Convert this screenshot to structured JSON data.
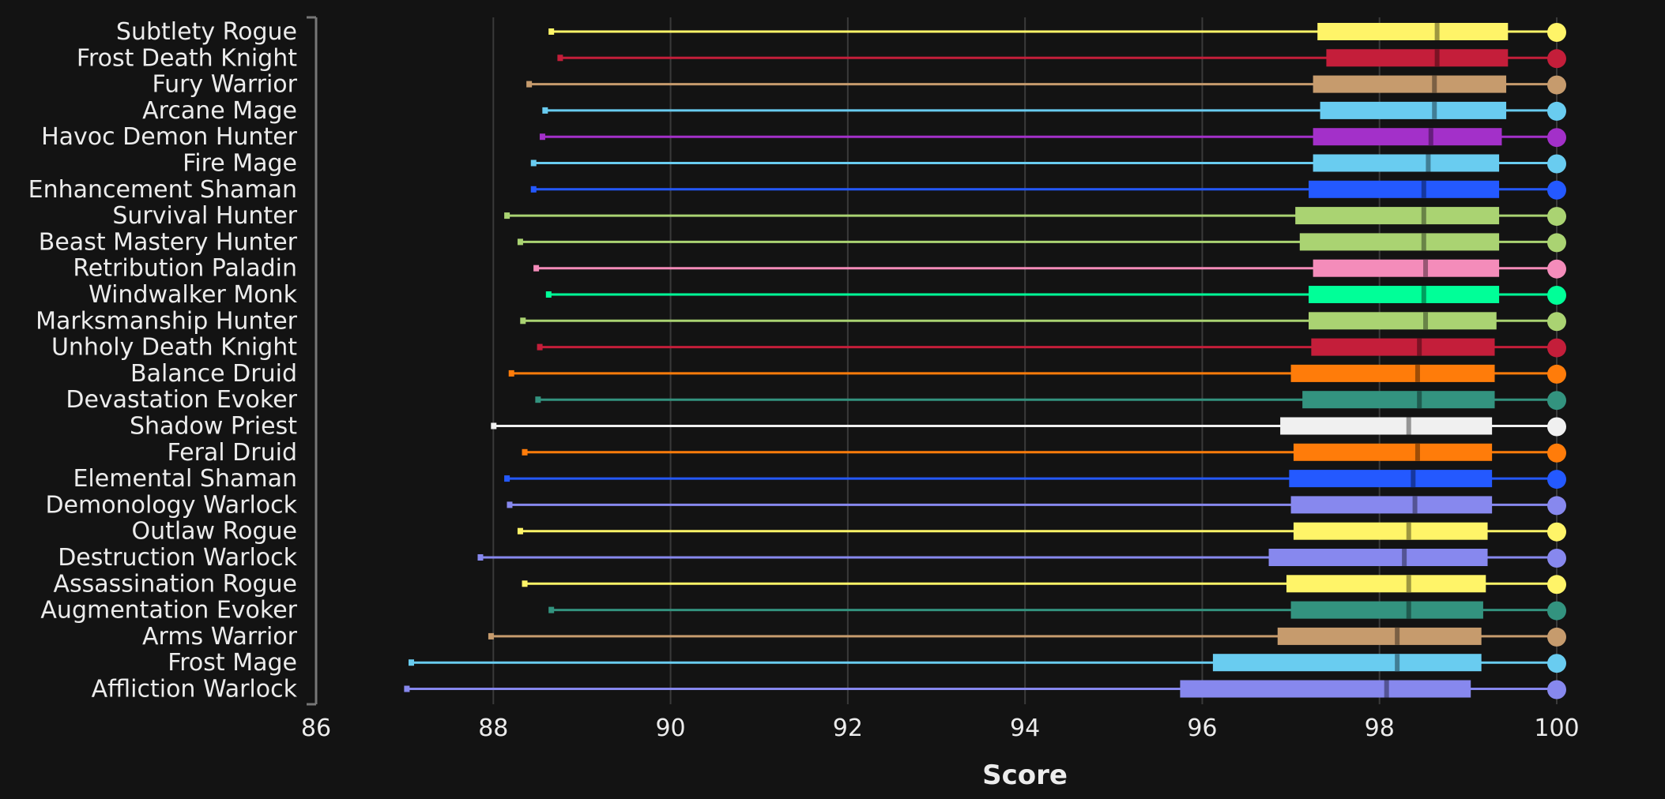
{
  "chart_data": {
    "type": "box",
    "orientation": "horizontal",
    "title": "",
    "xlabel": "Score",
    "ylabel": "",
    "xlim": [
      86,
      100
    ],
    "x_ticks": [
      86,
      88,
      90,
      92,
      94,
      96,
      98,
      100
    ],
    "grid": true,
    "legend": "none",
    "series": [
      {
        "category": "Subtlety Rogue",
        "color": "#fff468",
        "min": 88.65,
        "q1": 97.3,
        "median": 98.65,
        "q3": 99.45,
        "max": 100
      },
      {
        "category": "Frost Death Knight",
        "color": "#c41e3a",
        "min": 88.75,
        "q1": 97.4,
        "median": 98.65,
        "q3": 99.45,
        "max": 100
      },
      {
        "category": "Fury Warrior",
        "color": "#c69b6d",
        "min": 88.4,
        "q1": 97.25,
        "median": 98.62,
        "q3": 99.43,
        "max": 100
      },
      {
        "category": "Arcane Mage",
        "color": "#69ccf0",
        "min": 88.58,
        "q1": 97.33,
        "median": 98.62,
        "q3": 99.43,
        "max": 100
      },
      {
        "category": "Havoc Demon Hunter",
        "color": "#a330c9",
        "min": 88.55,
        "q1": 97.25,
        "median": 98.58,
        "q3": 99.38,
        "max": 100
      },
      {
        "category": "Fire Mage",
        "color": "#69ccf0",
        "min": 88.45,
        "q1": 97.25,
        "median": 98.55,
        "q3": 99.35,
        "max": 100
      },
      {
        "category": "Enhancement Shaman",
        "color": "#2459ff",
        "min": 88.45,
        "q1": 97.2,
        "median": 98.5,
        "q3": 99.35,
        "max": 100
      },
      {
        "category": "Survival Hunter",
        "color": "#aad372",
        "min": 88.15,
        "q1": 97.05,
        "median": 98.5,
        "q3": 99.35,
        "max": 100
      },
      {
        "category": "Beast Mastery Hunter",
        "color": "#aad372",
        "min": 88.3,
        "q1": 97.1,
        "median": 98.5,
        "q3": 99.35,
        "max": 100
      },
      {
        "category": "Retribution Paladin",
        "color": "#f48cba",
        "min": 88.48,
        "q1": 97.25,
        "median": 98.52,
        "q3": 99.35,
        "max": 100
      },
      {
        "category": "Windwalker Monk",
        "color": "#00ff98",
        "min": 88.62,
        "q1": 97.2,
        "median": 98.5,
        "q3": 99.35,
        "max": 100
      },
      {
        "category": "Marksmanship Hunter",
        "color": "#aad372",
        "min": 88.33,
        "q1": 97.2,
        "median": 98.52,
        "q3": 99.32,
        "max": 100
      },
      {
        "category": "Unholy Death Knight",
        "color": "#c41e3a",
        "min": 88.52,
        "q1": 97.23,
        "median": 98.45,
        "q3": 99.3,
        "max": 100
      },
      {
        "category": "Balance Druid",
        "color": "#ff7c0a",
        "min": 88.2,
        "q1": 97.0,
        "median": 98.43,
        "q3": 99.3,
        "max": 100
      },
      {
        "category": "Devastation Evoker",
        "color": "#33937f",
        "min": 88.5,
        "q1": 97.13,
        "median": 98.45,
        "q3": 99.3,
        "max": 100
      },
      {
        "category": "Shadow Priest",
        "color": "#f0f0f0",
        "min": 88.0,
        "q1": 96.88,
        "median": 98.33,
        "q3": 99.27,
        "max": 100
      },
      {
        "category": "Feral Druid",
        "color": "#ff7c0a",
        "min": 88.35,
        "q1": 97.03,
        "median": 98.43,
        "q3": 99.27,
        "max": 100
      },
      {
        "category": "Elemental Shaman",
        "color": "#2459ff",
        "min": 88.15,
        "q1": 96.98,
        "median": 98.38,
        "q3": 99.27,
        "max": 100
      },
      {
        "category": "Demonology Warlock",
        "color": "#8788ee",
        "min": 88.18,
        "q1": 97.0,
        "median": 98.4,
        "q3": 99.27,
        "max": 100
      },
      {
        "category": "Outlaw Rogue",
        "color": "#fff468",
        "min": 88.3,
        "q1": 97.03,
        "median": 98.33,
        "q3": 99.22,
        "max": 100
      },
      {
        "category": "Destruction Warlock",
        "color": "#8788ee",
        "min": 87.85,
        "q1": 96.75,
        "median": 98.28,
        "q3": 99.22,
        "max": 100
      },
      {
        "category": "Assassination Rogue",
        "color": "#fff468",
        "min": 88.35,
        "q1": 96.95,
        "median": 98.33,
        "q3": 99.2,
        "max": 100
      },
      {
        "category": "Augmentation Evoker",
        "color": "#33937f",
        "min": 88.65,
        "q1": 97.0,
        "median": 98.33,
        "q3": 99.17,
        "max": 100
      },
      {
        "category": "Arms Warrior",
        "color": "#c69b6d",
        "min": 87.97,
        "q1": 96.85,
        "median": 98.2,
        "q3": 99.15,
        "max": 100
      },
      {
        "category": "Frost Mage",
        "color": "#69ccf0",
        "min": 87.07,
        "q1": 96.12,
        "median": 98.2,
        "q3": 99.15,
        "max": 100
      },
      {
        "category": "Affliction Warlock",
        "color": "#8788ee",
        "min": 87.02,
        "q1": 95.75,
        "median": 98.08,
        "q3": 99.03,
        "max": 100
      }
    ]
  }
}
